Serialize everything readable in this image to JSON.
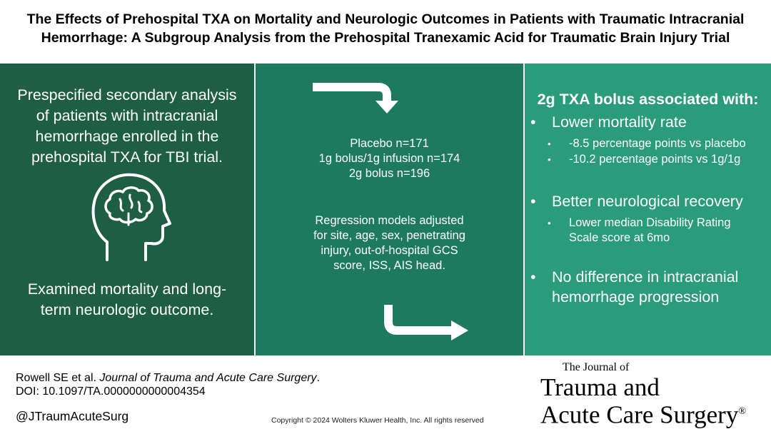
{
  "title": {
    "line1": "The Effects of Prehospital TXA on Mortality and Neurologic Outcomes in Patients with Traumatic Intracranial",
    "line2": "Hemorrhage: A Subgroup Analysis from the Prehospital Tranexamic Acid for Traumatic Brain Injury Trial"
  },
  "left_panel": {
    "intro": [
      "Prespecified secondary analysis",
      "of patients with intracranial",
      "hemorrhage enrolled in the",
      "prehospital TXA for TBI trial."
    ],
    "icon": "head-brain-icon",
    "examined": [
      "Examined mortality and long-",
      "term neurologic outcome."
    ]
  },
  "middle_panel": {
    "groups": [
      "Placebo n=171",
      "1g bolus/1g infusion n=174",
      "2g bolus n=196"
    ],
    "models": [
      "Regression models adjusted",
      "for site, age, sex, penetrating",
      "injury, out-of-hospital GCS",
      "score, ISS, AIS head."
    ],
    "icons": [
      "arrow-down-icon",
      "arrow-right-icon"
    ]
  },
  "right_panel": {
    "heading": "2g TXA bolus associated with:",
    "bullets": [
      {
        "text": [
          "Lower mortality rate"
        ],
        "subs": [
          [
            "-8.5 percentage points vs placebo"
          ],
          [
            "-10.2 percentage points vs 1g/1g"
          ]
        ]
      },
      {
        "text": [
          "Better neurological recovery"
        ],
        "subs": [
          [
            "Lower median Disability Rating",
            "Scale score at 6mo"
          ]
        ]
      },
      {
        "text": [
          "No difference in intracranial",
          "hemorrhage progression"
        ],
        "subs": []
      }
    ]
  },
  "footer": {
    "citation_authors": "Rowell SE et al. ",
    "citation_journal": "Journal of Trauma and Acute Care Surgery",
    "citation_end": ".",
    "doi": "DOI: 10.1097/TA.0000000000004354",
    "handle": "@JTraumAcuteSurg",
    "copyright": "Copyright © 2024  Wolters Kluwer Health, Inc. All rights reserved"
  },
  "logo": {
    "small": "The Journal of",
    "line2": "Trauma and",
    "line3": "Acute Care Surgery",
    "reg": "®"
  },
  "colors": {
    "panel_left": "#1d5e45",
    "panel_middle": "#1e7a5e",
    "panel_right": "#2a9b7b"
  }
}
